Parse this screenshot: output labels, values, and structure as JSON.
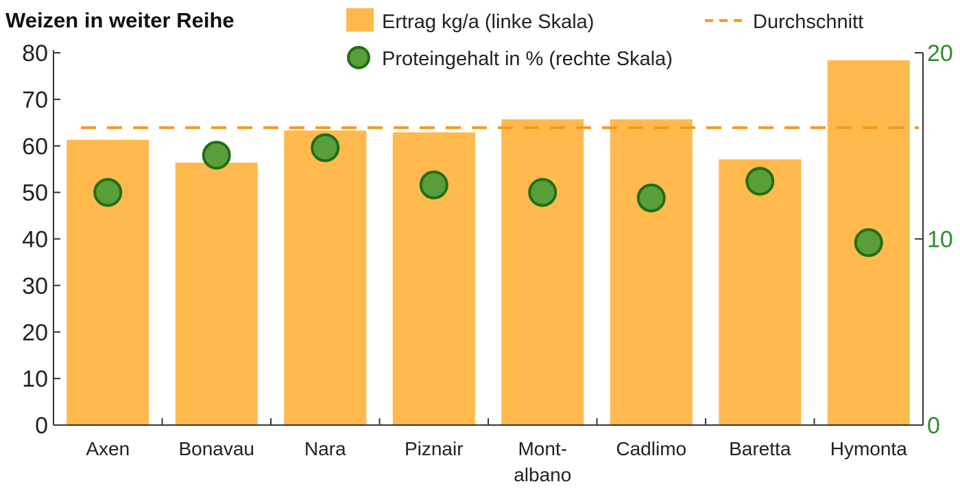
{
  "chart_data": {
    "type": "bar",
    "title": "Weizen in weiter Reihe",
    "categories": [
      "Axen",
      "Bonavau",
      "Nara",
      "Piznair",
      "Mont-\nalbano",
      "Cadlimo",
      "Baretta",
      "Hymonta"
    ],
    "series": [
      {
        "name": "Ertrag kg/a (linke Skala)",
        "type": "bar",
        "axis": "left",
        "color": "#ffb94d",
        "values": [
          61.3,
          56.4,
          63.3,
          62.9,
          65.7,
          65.7,
          57.1,
          78.4
        ]
      },
      {
        "name": "Proteingehalt in % (rechte Skala)",
        "type": "scatter",
        "axis": "right",
        "color": "#5a9e3a",
        "edge_color": "#1f6e12",
        "values": [
          12.5,
          14.5,
          14.9,
          12.9,
          12.5,
          12.2,
          13.1,
          9.8
        ]
      }
    ],
    "reference_line": {
      "name": "Durchschnitt",
      "value": 63.9,
      "axis": "left",
      "style": "dashed",
      "color": "#f39a1a"
    },
    "left_axis": {
      "ylim": [
        0,
        80
      ],
      "ticks": [
        0,
        10,
        20,
        30,
        40,
        50,
        60,
        70,
        80
      ]
    },
    "right_axis": {
      "ylim": [
        0,
        20
      ],
      "ticks": [
        0,
        10,
        20
      ],
      "color": "#2e8b2e"
    },
    "grid": false,
    "legend_placement": "top"
  }
}
